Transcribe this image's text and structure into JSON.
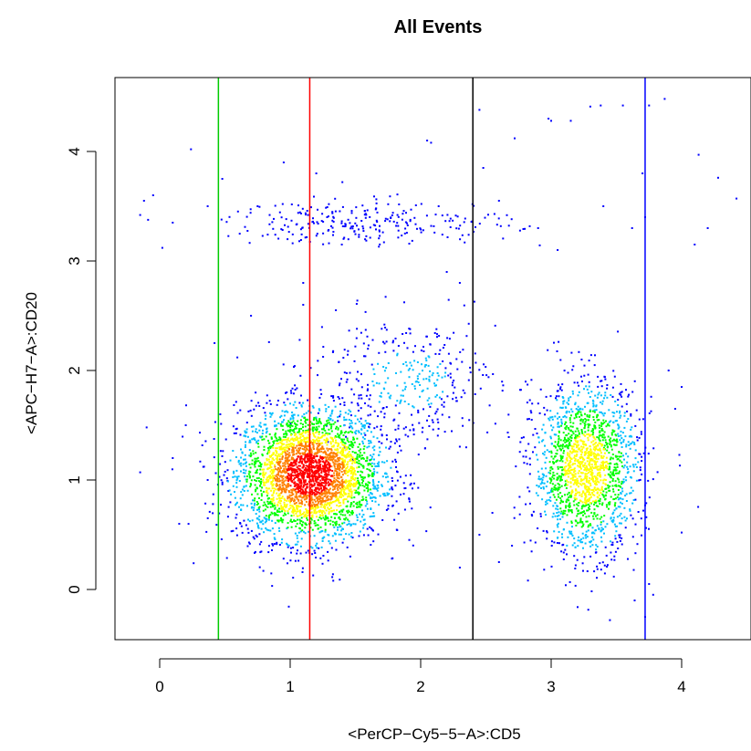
{
  "chart_data": {
    "type": "scatter",
    "title": "All Events",
    "xlabel": "<PerCP−Cy5−5−A>:CD5",
    "ylabel": "<APC−H7−A>:CD20",
    "xlim": [
      -0.35,
      4.55
    ],
    "ylim": [
      -0.45,
      4.7
    ],
    "x_ticks": [
      0,
      1,
      2,
      3,
      4
    ],
    "y_ticks": [
      0,
      1,
      2,
      3,
      4
    ],
    "grid": false,
    "legend": "none",
    "density_colors": [
      "#0000ff",
      "#00bfff",
      "#00ff00",
      "#ffff00",
      "#ff8000",
      "#ff0000"
    ],
    "vertical_lines": [
      {
        "x": 0.45,
        "color": "#00cc00"
      },
      {
        "x": 1.15,
        "color": "#ff0000"
      },
      {
        "x": 2.4,
        "color": "#000000"
      },
      {
        "x": 3.72,
        "color": "#0000ff"
      }
    ],
    "populations": [
      {
        "center": [
          1.15,
          1.05
        ],
        "spread": [
          0.28,
          0.3
        ],
        "count": 3200,
        "description": "dense cluster"
      },
      {
        "center": [
          3.27,
          1.1
        ],
        "spread": [
          0.2,
          0.38
        ],
        "count": 1700,
        "description": "right cluster"
      },
      {
        "center": [
          1.6,
          3.35
        ],
        "spread": [
          0.55,
          0.1
        ],
        "count": 260,
        "description": "upper band"
      },
      {
        "center": [
          1.9,
          1.9
        ],
        "spread": [
          0.35,
          0.3
        ],
        "count": 350,
        "description": "bridge"
      }
    ],
    "scattered_points": [
      [
        -0.15,
        3.42
      ],
      [
        -0.12,
        3.55
      ],
      [
        -0.05,
        3.6
      ],
      [
        0.02,
        3.12
      ],
      [
        0.1,
        3.35
      ],
      [
        0.24,
        4.02
      ],
      [
        0.48,
        3.75
      ],
      [
        0.75,
        3.5
      ],
      [
        0.95,
        3.9
      ],
      [
        1.2,
        3.8
      ],
      [
        1.4,
        3.72
      ],
      [
        2.05,
        4.1
      ],
      [
        2.08,
        4.08
      ],
      [
        2.45,
        4.38
      ],
      [
        2.48,
        3.85
      ],
      [
        2.6,
        3.55
      ],
      [
        2.72,
        4.12
      ],
      [
        2.98,
        4.3
      ],
      [
        3.0,
        4.28
      ],
      [
        3.15,
        4.28
      ],
      [
        3.3,
        4.41
      ],
      [
        3.38,
        4.42
      ],
      [
        3.55,
        4.42
      ],
      [
        3.75,
        4.42
      ],
      [
        3.87,
        4.48
      ],
      [
        4.28,
        3.76
      ],
      [
        4.42,
        3.57
      ],
      [
        4.13,
        3.97
      ],
      [
        4.2,
        3.3
      ],
      [
        4.1,
        3.15
      ],
      [
        3.7,
        3.8
      ],
      [
        3.72,
        3.4
      ],
      [
        3.62,
        3.3
      ],
      [
        3.05,
        3.1
      ],
      [
        2.9,
        3.3
      ],
      [
        3.4,
        3.5
      ],
      [
        2.3,
        2.8
      ],
      [
        2.2,
        2.9
      ],
      [
        1.1,
        2.8
      ],
      [
        1.1,
        2.6
      ],
      [
        1.35,
        2.55
      ],
      [
        0.7,
        2.5
      ],
      [
        0.42,
        2.25
      ],
      [
        0.2,
        1.5
      ],
      [
        0.1,
        1.2
      ],
      [
        -0.15,
        1.07
      ],
      [
        -0.1,
        1.48
      ],
      [
        0.15,
        0.6
      ],
      [
        0.26,
        0.24
      ],
      [
        1.33,
        0.08
      ],
      [
        1.38,
        0.09
      ],
      [
        2.6,
        0.25
      ],
      [
        3.45,
        -0.28
      ],
      [
        3.72,
        -0.25
      ],
      [
        3.64,
        -0.1
      ],
      [
        3.75,
        0.05
      ],
      [
        4.0,
        0.52
      ],
      [
        3.95,
        1.65
      ],
      [
        4.0,
        1.85
      ],
      [
        3.9,
        2.0
      ],
      [
        2.45,
        0.5
      ],
      [
        2.55,
        0.7
      ],
      [
        2.7,
        0.4
      ],
      [
        2.3,
        0.2
      ]
    ]
  }
}
